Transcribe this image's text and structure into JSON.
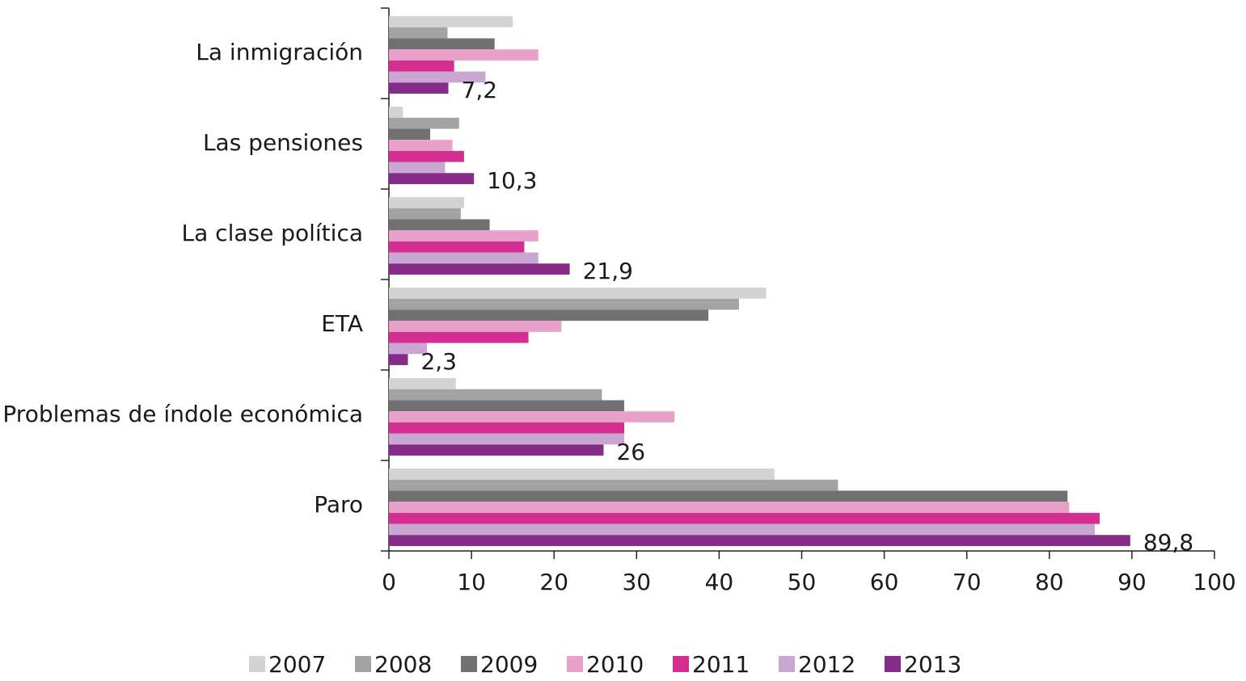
{
  "chart_data": {
    "type": "barh",
    "categories": [
      "La inmigración",
      "Las pensiones",
      "La clase política",
      "ETA",
      "Problemas de índole económica",
      "Paro"
    ],
    "series": [
      {
        "name": "2007",
        "color": "#d3d3d3",
        "values": [
          15.0,
          1.7,
          9.1,
          45.7,
          8.1,
          46.7
        ]
      },
      {
        "name": "2008",
        "color": "#a3a3a3",
        "values": [
          7.1,
          8.5,
          8.7,
          42.4,
          25.8,
          54.4
        ]
      },
      {
        "name": "2009",
        "color": "#717171",
        "values": [
          12.8,
          5.0,
          12.2,
          38.7,
          28.5,
          82.2
        ]
      },
      {
        "name": "2010",
        "color": "#e9a1c9",
        "values": [
          18.1,
          7.7,
          18.1,
          20.9,
          34.6,
          82.4
        ]
      },
      {
        "name": "2011",
        "color": "#d42e92",
        "values": [
          7.9,
          9.1,
          16.4,
          16.9,
          28.5,
          86.1
        ]
      },
      {
        "name": "2012",
        "color": "#c9a7d0",
        "values": [
          11.7,
          6.8,
          18.1,
          4.6,
          28.5,
          85.5
        ]
      },
      {
        "name": "2013",
        "color": "#872b89",
        "values": [
          7.2,
          10.3,
          21.9,
          2.3,
          26,
          89.8
        ],
        "value_labels": [
          "7,2",
          "10,3",
          "21,9",
          "2,3",
          "26",
          "89,8"
        ]
      }
    ],
    "xlim": [
      0,
      100
    ],
    "xticks": [
      0,
      10,
      20,
      30,
      40,
      50,
      60,
      70,
      80,
      90,
      100
    ],
    "legend": "bottom"
  }
}
